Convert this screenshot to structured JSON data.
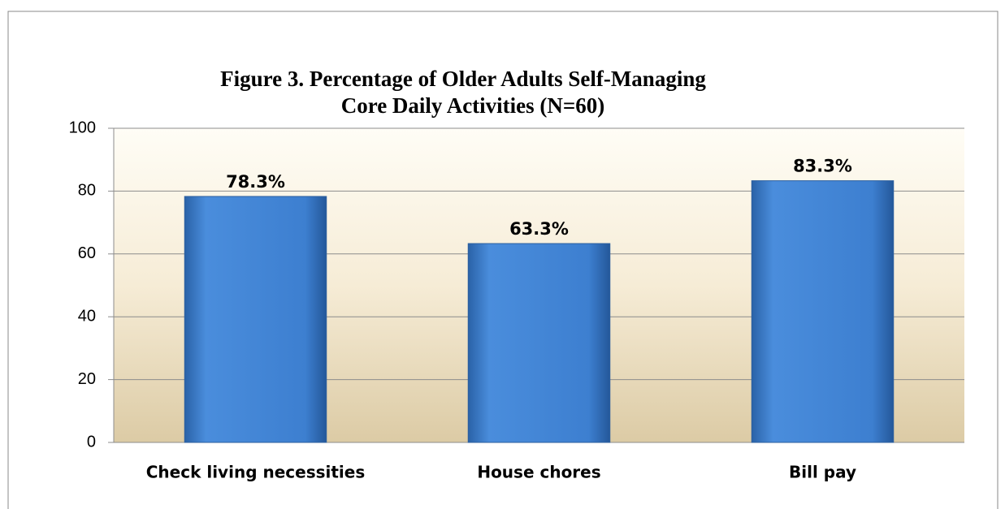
{
  "chart_data": {
    "type": "bar",
    "title": [
      "Figure 3. Percentage of Older Adults Self-Managing",
      "Core Daily Activities (N=60)"
    ],
    "categories": [
      "Check living necessities",
      "House chores",
      "Bill pay"
    ],
    "values": [
      78.3,
      63.3,
      83.3
    ],
    "value_labels": [
      "78.3%",
      "63.3%",
      "83.3%"
    ],
    "color": "#3d7fd0",
    "ylim": [
      0,
      100
    ],
    "yticks": [
      0,
      20,
      40,
      60,
      80,
      100
    ],
    "grid": true
  }
}
